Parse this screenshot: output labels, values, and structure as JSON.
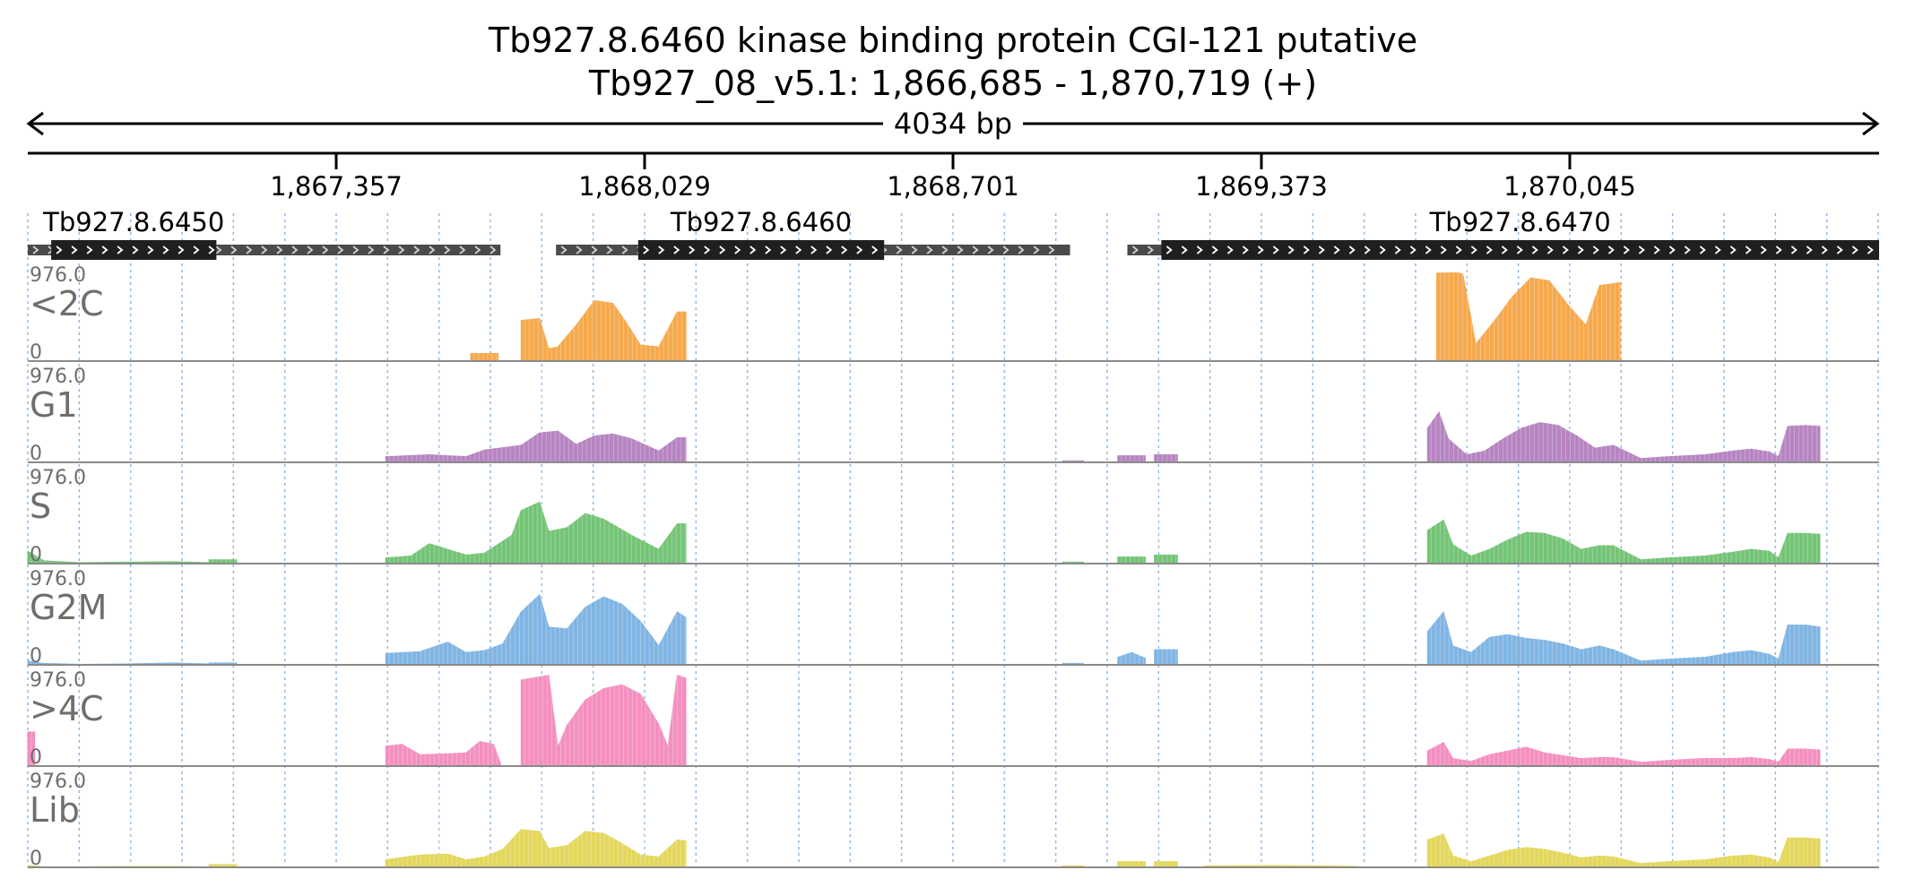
{
  "title": "Tb927.8.6460  kinase binding protein CGI-121  putative",
  "subtitle": "Tb927_08_v5.1: 1,866,685 - 1,870,719 (+)",
  "span_label": "4034 bp",
  "ticks": [
    "1,867,357",
    "1,868,029",
    "1,868,701",
    "1,869,373",
    "1,870,045"
  ],
  "colors": {
    "<2C": "#f6a94c",
    "G1": "#b784c2",
    "S": "#74c476",
    "G2M": "#80b5e3",
    ">4C": "#f48fc0",
    "Lib": "#e3d75c",
    "cds": "#1f1f1f",
    "utr": "#4a4a4a"
  },
  "genes": [
    {
      "name": "Tb927.8.6450",
      "utr": [
        1866685,
        1867715
      ],
      "cds": [
        1866736,
        1867096
      ]
    },
    {
      "name": "Tb927.8.6460",
      "utr": [
        1867836,
        1868956
      ],
      "cds": [
        1868015,
        1868551
      ]
    },
    {
      "name": "Tb927.8.6470",
      "utr": [
        1869081,
        1870719
      ],
      "cds": [
        1869155,
        1870719
      ]
    }
  ],
  "chart_data": {
    "type": "area",
    "x_range": [
      1866685,
      1870719
    ],
    "x_ticks": [
      1867357,
      1868029,
      1868701,
      1869373,
      1870045
    ],
    "ylim": [
      0,
      976.0
    ],
    "ymax_label": "976.0",
    "ymin_label": "0",
    "series": [
      {
        "name": "<2C",
        "segments": [
          {
            "x": [
              1867650,
              1867710
            ],
            "y": [
              80,
              80
            ]
          },
          {
            "x": [
              1867760,
              1867800,
              1867820,
              1867840,
              1867880,
              1867920,
              1867960,
              1867990,
              1868020,
              1868060,
              1868100,
              1868119
            ],
            "y": [
              430,
              450,
              130,
              150,
              380,
              640,
              610,
              400,
              170,
              150,
              520,
              520
            ]
          },
          {
            "x": [
              1869755,
              1869800,
              1869812,
              1869840,
              1869880,
              1869920,
              1869960,
              1870000,
              1870040,
              1870080,
              1870110,
              1870155
            ],
            "y": [
              930,
              935,
              920,
              180,
              420,
              680,
              880,
              850,
              600,
              380,
              800,
              830
            ]
          }
        ]
      },
      {
        "name": "G1",
        "segments": [
          {
            "x": [
              1867465,
              1867560,
              1867640,
              1867680,
              1867760,
              1867800,
              1867840,
              1867880,
              1867920,
              1867960,
              1868000,
              1868060,
              1868100,
              1868119
            ],
            "y": [
              60,
              80,
              60,
              130,
              180,
              310,
              330,
              190,
              280,
              300,
              250,
              120,
              260,
              260
            ]
          },
          {
            "x": [
              1868940,
              1868985
            ],
            "y": [
              15,
              15
            ]
          },
          {
            "x": [
              1869060,
              1869120
            ],
            "y": [
              70,
              70
            ]
          },
          {
            "x": [
              1869140,
              1869190
            ],
            "y": [
              80,
              80
            ]
          },
          {
            "x": [
              1869735,
              1869760,
              1869780,
              1869820,
              1869860,
              1869900,
              1869940,
              1869980,
              1870020,
              1870060,
              1870100,
              1870140,
              1870200,
              1870260,
              1870340,
              1870400,
              1870440,
              1870480,
              1870500,
              1870520,
              1870560,
              1870590
            ],
            "y": [
              360,
              530,
              250,
              80,
              120,
              250,
              360,
              420,
              390,
              280,
              150,
              180,
              40,
              60,
              80,
              120,
              140,
              110,
              60,
              380,
              390,
              380
            ]
          }
        ]
      },
      {
        "name": "S",
        "segments": [
          {
            "x": [
              1866685,
              1866720,
              1866800,
              1866900,
              1867000,
              1867080
            ],
            "y": [
              130,
              30,
              10,
              15,
              20,
              10
            ]
          },
          {
            "x": [
              1867080,
              1867140
            ],
            "y": [
              40,
              40
            ]
          },
          {
            "x": [
              1867465,
              1867520,
              1867560,
              1867640,
              1867680,
              1867740,
              1867760,
              1867800,
              1867820,
              1867860,
              1867900,
              1867940,
              1868000,
              1868060,
              1868100,
              1868119
            ],
            "y": [
              60,
              80,
              210,
              90,
              110,
              300,
              560,
              650,
              340,
              380,
              530,
              470,
              300,
              150,
              420,
              420
            ]
          },
          {
            "x": [
              1868940,
              1868985
            ],
            "y": [
              15,
              15
            ]
          },
          {
            "x": [
              1869060,
              1869120
            ],
            "y": [
              70,
              70
            ]
          },
          {
            "x": [
              1869140,
              1869190
            ],
            "y": [
              90,
              90
            ]
          },
          {
            "x": [
              1869735,
              1869770,
              1869790,
              1869830,
              1869870,
              1869910,
              1869950,
              1869990,
              1870030,
              1870070,
              1870110,
              1870140,
              1870200,
              1870260,
              1870340,
              1870400,
              1870440,
              1870480,
              1870500,
              1870520,
              1870560,
              1870590
            ],
            "y": [
              350,
              460,
              200,
              80,
              150,
              250,
              330,
              320,
              260,
              150,
              190,
              190,
              40,
              60,
              80,
              120,
              150,
              130,
              60,
              320,
              320,
              310
            ]
          }
        ]
      },
      {
        "name": "G2M",
        "segments": [
          {
            "x": [
              1866685,
              1866720,
              1866800,
              1866900,
              1867000,
              1867080
            ],
            "y": [
              40,
              15,
              5,
              10,
              20,
              10
            ]
          },
          {
            "x": [
              1867080,
              1867140
            ],
            "y": [
              20,
              20
            ]
          },
          {
            "x": [
              1867465,
              1867540,
              1867600,
              1867640,
              1867680,
              1867720,
              1867760,
              1867800,
              1867820,
              1867860,
              1867900,
              1867940,
              1867980,
              1868020,
              1868060,
              1868100,
              1868119
            ],
            "y": [
              120,
              140,
              240,
              130,
              150,
              220,
              560,
              740,
              400,
              380,
              610,
              720,
              640,
              460,
              200,
              560,
              500
            ]
          },
          {
            "x": [
              1868940,
              1868985
            ],
            "y": [
              15,
              15
            ]
          },
          {
            "x": [
              1869060,
              1869090,
              1869120
            ],
            "y": [
              80,
              130,
              70
            ]
          },
          {
            "x": [
              1869140,
              1869190
            ],
            "y": [
              160,
              160
            ]
          },
          {
            "x": [
              1869735,
              1869770,
              1869790,
              1869830,
              1869870,
              1869910,
              1869950,
              1869990,
              1870030,
              1870070,
              1870110,
              1870140,
              1870200,
              1870260,
              1870340,
              1870400,
              1870440,
              1870480,
              1870500,
              1870520,
              1870560,
              1870590
            ],
            "y": [
              350,
              560,
              200,
              130,
              290,
              320,
              280,
              260,
              220,
              160,
              200,
              160,
              40,
              60,
              80,
              130,
              150,
              110,
              60,
              420,
              420,
              400
            ]
          }
        ]
      },
      {
        "name": ">4C",
        "segments": [
          {
            "x": [
              1866685,
              1866700
            ],
            "y": [
              360,
              360
            ]
          },
          {
            "x": [
              1867465,
              1867500,
              1867540,
              1867600,
              1867640,
              1867670,
              1867700,
              1867715
            ],
            "y": [
              210,
              230,
              120,
              130,
              140,
              260,
              230,
              30
            ]
          },
          {
            "x": [
              1867760,
              1867820,
              1867840,
              1867860,
              1867900,
              1867940,
              1867980,
              1868020,
              1868060,
              1868080,
              1868100,
              1868119
            ],
            "y": [
              910,
              960,
              200,
              430,
              700,
              820,
              860,
              760,
              440,
              200,
              960,
              930
            ]
          },
          {
            "x": [
              1869735,
              1869770,
              1869790,
              1869830,
              1869870,
              1869910,
              1869950,
              1869990,
              1870030,
              1870070,
              1870110,
              1870140,
              1870200,
              1870260,
              1870340,
              1870400,
              1870440,
              1870480,
              1870500,
              1870520,
              1870560,
              1870590
            ],
            "y": [
              160,
              250,
              80,
              50,
              120,
              160,
              200,
              140,
              110,
              80,
              90,
              90,
              40,
              60,
              80,
              80,
              90,
              70,
              40,
              180,
              180,
              170
            ]
          }
        ]
      },
      {
        "name": "Lib",
        "segments": [
          {
            "x": [
              1866685,
              1866720,
              1866800,
              1866900,
              1867000,
              1867080
            ],
            "y": [
              20,
              5,
              5,
              10,
              10,
              5
            ]
          },
          {
            "x": [
              1867080,
              1867140
            ],
            "y": [
              30,
              30
            ]
          },
          {
            "x": [
              1867465,
              1867540,
              1867600,
              1867640,
              1867680,
              1867720,
              1867760,
              1867800,
              1867820,
              1867860,
              1867900,
              1867940,
              1867980,
              1868020,
              1868060,
              1868100,
              1868119
            ],
            "y": [
              80,
              130,
              140,
              80,
              110,
              190,
              400,
              380,
              200,
              230,
              380,
              360,
              250,
              130,
              110,
              290,
              280
            ]
          },
          {
            "x": [
              1868940,
              1868985
            ],
            "y": [
              15,
              15
            ]
          },
          {
            "x": [
              1869060,
              1869120
            ],
            "y": [
              60,
              60
            ]
          },
          {
            "x": [
              1869140,
              1869190
            ],
            "y": [
              60,
              60
            ]
          },
          {
            "x": [
              1869250,
              1869400,
              1869500,
              1869580
            ],
            "y": [
              15,
              20,
              15,
              10
            ]
          },
          {
            "x": [
              1869735,
              1869770,
              1869790,
              1869830,
              1869870,
              1869910,
              1869950,
              1869990,
              1870030,
              1870070,
              1870110,
              1870140,
              1870200,
              1870260,
              1870340,
              1870400,
              1870440,
              1870480,
              1870500,
              1870520,
              1870560,
              1870590
            ],
            "y": [
              290,
              350,
              120,
              60,
              120,
              180,
              210,
              190,
              150,
              100,
              120,
              110,
              40,
              60,
              80,
              120,
              130,
              100,
              50,
              310,
              310,
              300
            ]
          }
        ]
      }
    ]
  }
}
